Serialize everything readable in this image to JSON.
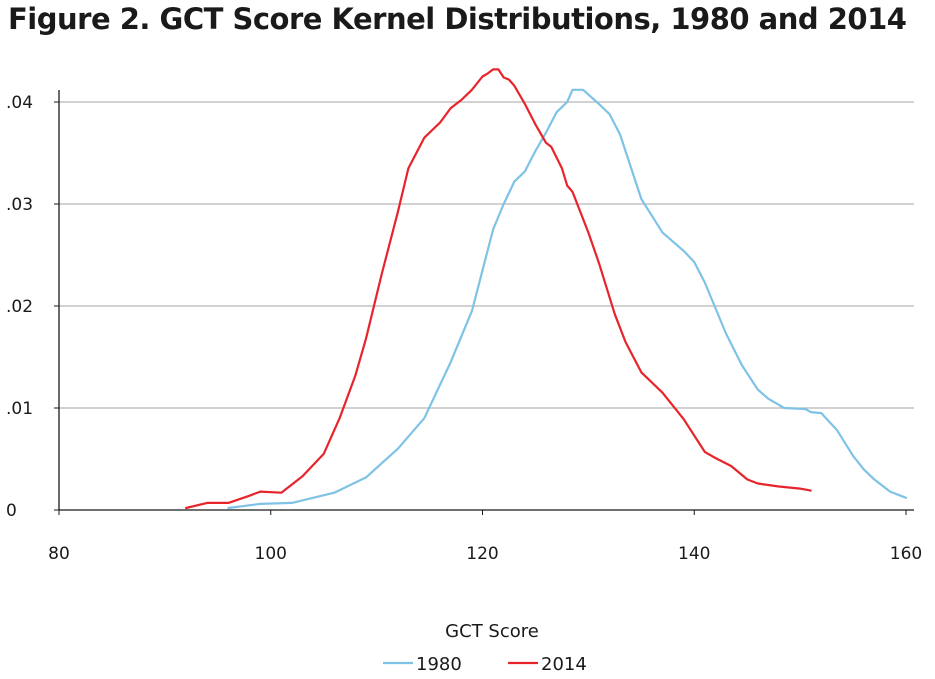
{
  "title": "Figure 2. GCT Score Kernel Distributions, 1980 and 2014",
  "chart_data": {
    "type": "line",
    "title": "Figure 2. GCT Score Kernel Distributions, 1980 and 2014",
    "xlabel": "GCT Score",
    "ylabel": "",
    "xlim": [
      80,
      160
    ],
    "ylim": [
      0,
      0.044
    ],
    "xticks": [
      80,
      100,
      120,
      140,
      160
    ],
    "xtick_labels": [
      "80",
      "100",
      "120",
      "140",
      "160"
    ],
    "yticks": [
      0,
      0.01,
      0.02,
      0.03,
      0.04
    ],
    "ytick_labels": [
      "0",
      ".01",
      ".02",
      ".03",
      ".04"
    ],
    "grid": "horizontal",
    "legend_position": "bottom",
    "series": [
      {
        "name": "1980",
        "color": "#7ec3e6",
        "x": [
          96,
          99,
          102,
          104,
          106,
          109,
          112,
          114.5,
          117,
          119,
          120,
          121,
          122,
          123,
          124,
          125,
          126,
          127,
          128,
          128.5,
          129.5,
          131,
          132,
          133,
          135,
          137,
          139,
          140,
          141,
          143,
          144.5,
          146,
          147,
          148.5,
          150.5,
          151,
          152,
          153.5,
          155,
          156,
          157,
          158.5,
          160
        ],
        "y": [
          0.0002,
          0.0006,
          0.0007,
          0.0012,
          0.0017,
          0.0032,
          0.006,
          0.009,
          0.0145,
          0.0195,
          0.0235,
          0.0275,
          0.03,
          0.0322,
          0.0332,
          0.0352,
          0.037,
          0.039,
          0.04,
          0.0412,
          0.0412,
          0.0398,
          0.0388,
          0.0368,
          0.0305,
          0.0272,
          0.0254,
          0.0243,
          0.0223,
          0.0173,
          0.0142,
          0.0118,
          0.0109,
          0.01,
          0.0099,
          0.0096,
          0.0095,
          0.0078,
          0.0053,
          0.004,
          0.003,
          0.0018,
          0.0012
        ]
      },
      {
        "name": "2014",
        "color": "#e8242b",
        "x": [
          92,
          94,
          96,
          98,
          99,
          101,
          103,
          105,
          106.5,
          108,
          109,
          110.5,
          112,
          113,
          114.5,
          116,
          117,
          118,
          119,
          120,
          120.5,
          121,
          121.5,
          122,
          122.5,
          123,
          124,
          125,
          126,
          126.5,
          127.5,
          128,
          128.5,
          130,
          131,
          132.5,
          133.5,
          135,
          137,
          139,
          141,
          142,
          143.5,
          145,
          146,
          148,
          150,
          151
        ],
        "y": [
          0.0002,
          0.0007,
          0.0007,
          0.0014,
          0.0018,
          0.0017,
          0.0033,
          0.0055,
          0.009,
          0.0132,
          0.0168,
          0.0232,
          0.0292,
          0.0335,
          0.0365,
          0.038,
          0.0394,
          0.0402,
          0.0412,
          0.0425,
          0.0428,
          0.0432,
          0.0432,
          0.0424,
          0.0422,
          0.0416,
          0.0398,
          0.0378,
          0.036,
          0.0356,
          0.0335,
          0.0318,
          0.0312,
          0.0272,
          0.0242,
          0.0192,
          0.0165,
          0.0135,
          0.0115,
          0.0089,
          0.0057,
          0.0051,
          0.0043,
          0.003,
          0.0026,
          0.0023,
          0.0021,
          0.0019
        ]
      }
    ]
  }
}
